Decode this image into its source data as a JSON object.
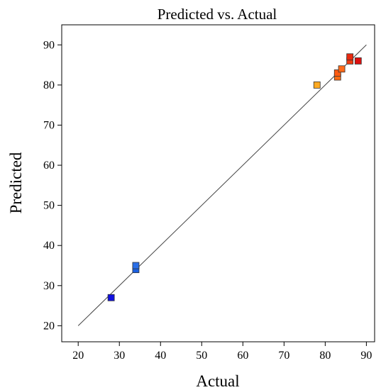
{
  "chart_data": {
    "type": "scatter",
    "title": "Predicted vs. Actual",
    "xlabel": "Actual",
    "ylabel": "Predicted",
    "xlim": [
      16,
      92
    ],
    "ylim": [
      16,
      95
    ],
    "x_ticks": [
      20,
      30,
      40,
      50,
      60,
      70,
      80,
      90
    ],
    "y_ticks": [
      20,
      30,
      40,
      50,
      60,
      70,
      80,
      90
    ],
    "grid": false,
    "legend": "none",
    "reference_line": {
      "from": [
        20,
        20
      ],
      "to": [
        90,
        90
      ]
    },
    "points": [
      {
        "x": 28.0,
        "y": 27.0,
        "color": "#1010e0"
      },
      {
        "x": 34.0,
        "y": 34.0,
        "color": "#1a5fe0"
      },
      {
        "x": 34.0,
        "y": 35.0,
        "color": "#2a6fe8"
      },
      {
        "x": 78.0,
        "y": 80.0,
        "color": "#ffaa22"
      },
      {
        "x": 83.0,
        "y": 82.0,
        "color": "#ff6a10"
      },
      {
        "x": 83.0,
        "y": 83.0,
        "color": "#ff5a10"
      },
      {
        "x": 84.0,
        "y": 84.0,
        "color": "#ff6a1a"
      },
      {
        "x": 86.0,
        "y": 86.0,
        "color": "#ee3a10"
      },
      {
        "x": 86.0,
        "y": 87.0,
        "color": "#e82a10"
      },
      {
        "x": 88.0,
        "y": 86.0,
        "color": "#dd1010"
      }
    ]
  }
}
